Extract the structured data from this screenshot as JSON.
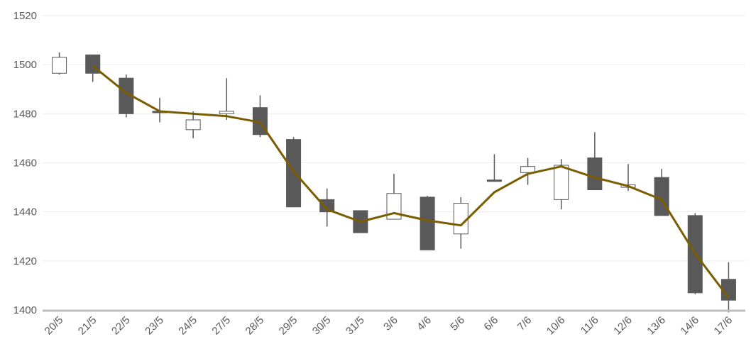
{
  "chart_data": {
    "type": "candlestick",
    "title": "",
    "xlabel": "",
    "ylabel": "",
    "ylim": [
      1400,
      1520
    ],
    "yticks": [
      1400,
      1420,
      1440,
      1460,
      1480,
      1500,
      1520
    ],
    "grid": true,
    "legend": "none",
    "categories": [
      "20/5",
      "21/5",
      "22/5",
      "23/5",
      "24/5",
      "27/5",
      "28/5",
      "29/5",
      "30/5",
      "31/5",
      "3/6",
      "4/6",
      "5/6",
      "6/6",
      "7/6",
      "10/6",
      "11/6",
      "12/6",
      "13/6",
      "14/6",
      "17/6"
    ],
    "ohlc": [
      {
        "open": 1496.5,
        "high": 1505,
        "low": 1496,
        "close": 1503
      },
      {
        "open": 1504,
        "high": 1504,
        "low": 1493,
        "close": 1496.5
      },
      {
        "open": 1494.5,
        "high": 1496,
        "low": 1478.5,
        "close": 1480
      },
      {
        "open": 1481,
        "high": 1486.5,
        "low": 1476.5,
        "close": 1480.5
      },
      {
        "open": 1473.5,
        "high": 1481,
        "low": 1470,
        "close": 1477.5
      },
      {
        "open": 1480,
        "high": 1494.5,
        "low": 1477.5,
        "close": 1481
      },
      {
        "open": 1482.5,
        "high": 1487.5,
        "low": 1470.5,
        "close": 1471.5
      },
      {
        "open": 1469.5,
        "high": 1470.5,
        "low": 1442,
        "close": 1442
      },
      {
        "open": 1445,
        "high": 1449.5,
        "low": 1434,
        "close": 1440
      },
      {
        "open": 1440.5,
        "high": 1440.5,
        "low": 1431.5,
        "close": 1431.5
      },
      {
        "open": 1437,
        "high": 1455.5,
        "low": 1437,
        "close": 1447.5
      },
      {
        "open": 1446,
        "high": 1446.5,
        "low": 1424.5,
        "close": 1424.5
      },
      {
        "open": 1431,
        "high": 1446,
        "low": 1425,
        "close": 1443.5
      },
      {
        "open": 1453,
        "high": 1463.5,
        "low": 1452.5,
        "close": 1452.5
      },
      {
        "open": 1456,
        "high": 1462,
        "low": 1451,
        "close": 1458.5
      },
      {
        "open": 1445,
        "high": 1461.5,
        "low": 1441,
        "close": 1459
      },
      {
        "open": 1462,
        "high": 1472.5,
        "low": 1449,
        "close": 1449
      },
      {
        "open": 1450,
        "high": 1459.5,
        "low": 1448.5,
        "close": 1451
      },
      {
        "open": 1454,
        "high": 1457.5,
        "low": 1438.5,
        "close": 1438.5
      },
      {
        "open": 1438.5,
        "high": 1439.5,
        "low": 1406.5,
        "close": 1407
      },
      {
        "open": 1412.5,
        "high": 1419.5,
        "low": 1399,
        "close": 1404
      }
    ],
    "line": {
      "values": [
        null,
        1499.5,
        1488.5,
        1481,
        1480,
        1479,
        1476.5,
        1456.5,
        1441,
        1436,
        1439.5,
        1436.5,
        1434.5,
        1448,
        1455.5,
        1458.5,
        1454,
        1450.5,
        1445,
        1423,
        1405
      ],
      "color": "#7a5d00"
    },
    "colors": {
      "bearish_fill": "#595959",
      "bullish_fill": "#ffffff",
      "candle_stroke": "#595959"
    }
  }
}
